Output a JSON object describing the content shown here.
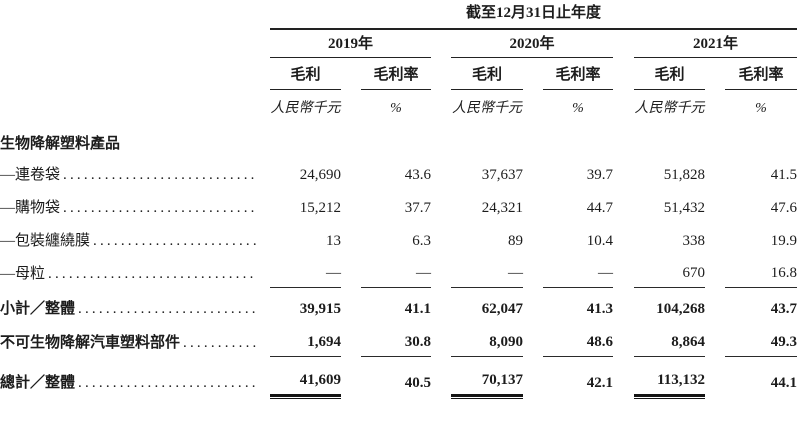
{
  "table": {
    "period_header": "截至12月31日止年度",
    "years": [
      "2019年",
      "2020年",
      "2021年"
    ],
    "col_headers": {
      "gross_profit": "毛利",
      "gross_margin": "毛利率"
    },
    "units": {
      "amount": "人民幣千元",
      "percent": "%"
    },
    "section_header": "生物降解塑料產品",
    "rows": [
      {
        "label": "—連卷袋",
        "values": [
          "24,690",
          "43.6",
          "37,637",
          "39.7",
          "51,828",
          "41.5"
        ]
      },
      {
        "label": "—購物袋",
        "values": [
          "15,212",
          "37.7",
          "24,321",
          "44.7",
          "51,432",
          "47.6"
        ]
      },
      {
        "label": "—包裝纏繞膜",
        "values": [
          "13",
          "6.3",
          "89",
          "10.4",
          "338",
          "19.9"
        ]
      },
      {
        "label": "—母粒",
        "values": [
          "—",
          "—",
          "—",
          "—",
          "670",
          "16.8"
        ]
      },
      {
        "label": "小計／整體",
        "values": [
          "39,915",
          "41.1",
          "62,047",
          "41.3",
          "104,268",
          "43.7"
        ],
        "bold": true
      },
      {
        "label": "不可生物降解汽車塑料部件",
        "values": [
          "1,694",
          "30.8",
          "8,090",
          "48.6",
          "8,864",
          "49.3"
        ],
        "bold": true
      },
      {
        "label": "總計／整體",
        "values": [
          "41,609",
          "40.5",
          "70,137",
          "42.1",
          "113,132",
          "44.1"
        ],
        "bold": true
      }
    ],
    "colors": {
      "text": "#1c1c1c",
      "rule": "#222222",
      "background": "#ffffff"
    }
  }
}
